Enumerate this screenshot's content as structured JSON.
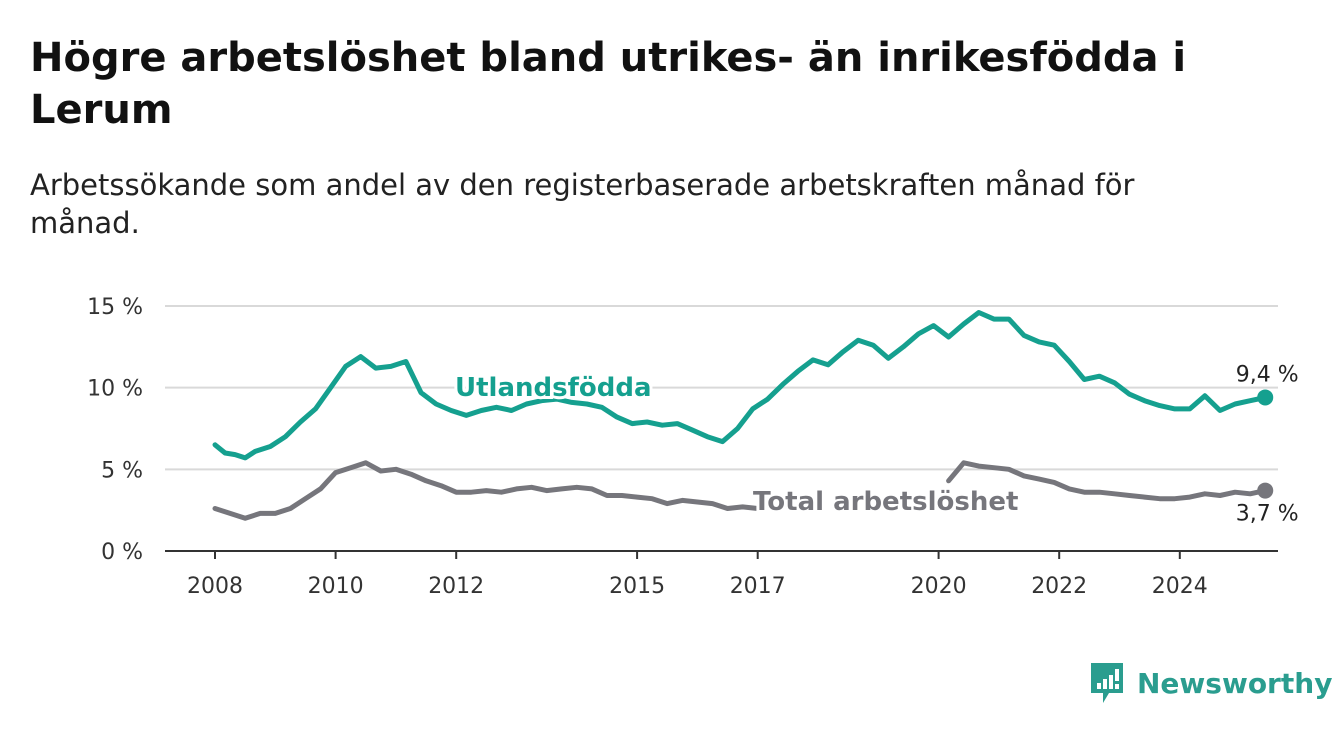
{
  "title": "Högre arbetslöshet bland utrikes- än inrikesfödda i Lerum",
  "subtitle": "Arbetssökande som andel av den registerbaserade arbetskraften månad för månad.",
  "brand": {
    "name": "Newsworthy",
    "icon": "newsworthy-logo-icon"
  },
  "colors": {
    "foreign": "#15a08f",
    "total": "#76767c",
    "grid": "#d9d9d9",
    "axis": "#333333",
    "brand": "#2a9d8f"
  },
  "chart_data": {
    "type": "line",
    "title": "Högre arbetslöshet bland utrikes- än inrikesfödda i Lerum",
    "subtitle": "Arbetssökande som andel av den registerbaserade arbetskraften månad för månad.",
    "xlabel": "",
    "ylabel": "",
    "x_ticks": [
      "2008",
      "2010",
      "2012",
      "2015",
      "2017",
      "2020",
      "2022",
      "2024"
    ],
    "y_ticks": [
      "0 %",
      "5 %",
      "10 %",
      "15 %"
    ],
    "y_tick_values": [
      0,
      5,
      10,
      15
    ],
    "ylim": [
      0,
      15
    ],
    "x_range": [
      "2008-01",
      "2025-06"
    ],
    "grid": true,
    "legend": "inline labels",
    "series": [
      {
        "name": "Utlandsfödda",
        "color": "#15a08f",
        "end_label": "9,4 %",
        "points": [
          [
            "2008-01",
            6.5
          ],
          [
            "2008-03",
            6.0
          ],
          [
            "2008-05",
            5.9
          ],
          [
            "2008-07",
            5.7
          ],
          [
            "2008-09",
            6.1
          ],
          [
            "2008-12",
            6.4
          ],
          [
            "2009-03",
            7.0
          ],
          [
            "2009-06",
            7.9
          ],
          [
            "2009-09",
            8.7
          ],
          [
            "2009-12",
            10.0
          ],
          [
            "2010-03",
            11.3
          ],
          [
            "2010-06",
            11.9
          ],
          [
            "2010-09",
            11.2
          ],
          [
            "2010-12",
            11.3
          ],
          [
            "2011-03",
            11.6
          ],
          [
            "2011-06",
            9.7
          ],
          [
            "2011-09",
            9.0
          ],
          [
            "2011-12",
            8.6
          ],
          [
            "2012-03",
            8.3
          ],
          [
            "2012-06",
            8.6
          ],
          [
            "2012-09",
            8.8
          ],
          [
            "2012-12",
            8.6
          ],
          [
            "2013-03",
            9.0
          ],
          [
            "2013-06",
            9.2
          ],
          [
            "2013-09",
            9.3
          ],
          [
            "2013-12",
            9.1
          ],
          [
            "2014-03",
            9.0
          ],
          [
            "2014-06",
            8.8
          ],
          [
            "2014-09",
            8.2
          ],
          [
            "2014-12",
            7.8
          ],
          [
            "2015-03",
            7.9
          ],
          [
            "2015-06",
            7.7
          ],
          [
            "2015-09",
            7.8
          ],
          [
            "2015-12",
            7.4
          ],
          [
            "2016-03",
            7.0
          ],
          [
            "2016-06",
            6.7
          ],
          [
            "2016-09",
            7.5
          ],
          [
            "2016-12",
            8.7
          ],
          [
            "2017-03",
            9.3
          ],
          [
            "2017-06",
            10.2
          ],
          [
            "2017-09",
            11.0
          ],
          [
            "2017-12",
            11.7
          ],
          [
            "2018-03",
            11.4
          ],
          [
            "2018-06",
            12.2
          ],
          [
            "2018-09",
            12.9
          ],
          [
            "2018-12",
            12.6
          ],
          [
            "2019-03",
            11.8
          ],
          [
            "2019-06",
            12.5
          ],
          [
            "2019-09",
            13.3
          ],
          [
            "2019-12",
            13.8
          ],
          [
            "2020-03",
            13.1
          ],
          [
            "2020-06",
            13.9
          ],
          [
            "2020-09",
            14.6
          ],
          [
            "2020-12",
            14.2
          ],
          [
            "2021-03",
            14.2
          ],
          [
            "2021-06",
            13.2
          ],
          [
            "2021-09",
            12.8
          ],
          [
            "2021-12",
            12.6
          ],
          [
            "2022-03",
            11.6
          ],
          [
            "2022-06",
            10.5
          ],
          [
            "2022-09",
            10.7
          ],
          [
            "2022-12",
            10.3
          ],
          [
            "2023-03",
            9.6
          ],
          [
            "2023-06",
            9.2
          ],
          [
            "2023-09",
            8.9
          ],
          [
            "2023-12",
            8.7
          ],
          [
            "2024-03",
            8.7
          ],
          [
            "2024-06",
            9.5
          ],
          [
            "2024-09",
            8.6
          ],
          [
            "2024-12",
            9.0
          ],
          [
            "2025-03",
            9.2
          ],
          [
            "2025-06",
            9.4
          ]
        ]
      },
      {
        "name": "Total arbetslöshet",
        "color": "#76767c",
        "end_label": "3,7 %",
        "segments": [
          [
            [
              "2008-01",
              2.6
            ],
            [
              "2008-04",
              2.3
            ],
            [
              "2008-07",
              2.0
            ],
            [
              "2008-10",
              2.3
            ],
            [
              "2009-01",
              2.3
            ],
            [
              "2009-04",
              2.6
            ],
            [
              "2009-07",
              3.2
            ],
            [
              "2009-10",
              3.8
            ],
            [
              "2010-01",
              4.8
            ],
            [
              "2010-04",
              5.1
            ],
            [
              "2010-07",
              5.4
            ],
            [
              "2010-10",
              4.9
            ],
            [
              "2011-01",
              5.0
            ],
            [
              "2011-04",
              4.7
            ],
            [
              "2011-07",
              4.3
            ],
            [
              "2011-10",
              4.0
            ],
            [
              "2012-01",
              3.6
            ],
            [
              "2012-04",
              3.6
            ],
            [
              "2012-07",
              3.7
            ],
            [
              "2012-10",
              3.6
            ],
            [
              "2013-01",
              3.8
            ],
            [
              "2013-04",
              3.9
            ],
            [
              "2013-07",
              3.7
            ],
            [
              "2013-10",
              3.8
            ],
            [
              "2014-01",
              3.9
            ],
            [
              "2014-04",
              3.8
            ],
            [
              "2014-07",
              3.4
            ],
            [
              "2014-10",
              3.4
            ],
            [
              "2015-01",
              3.3
            ],
            [
              "2015-04",
              3.2
            ],
            [
              "2015-07",
              2.9
            ],
            [
              "2015-10",
              3.1
            ],
            [
              "2016-01",
              3.0
            ],
            [
              "2016-04",
              2.9
            ],
            [
              "2016-07",
              2.6
            ],
            [
              "2016-10",
              2.7
            ],
            [
              "2017-01",
              2.6
            ]
          ],
          [
            [
              "2020-03",
              4.3
            ],
            [
              "2020-06",
              5.4
            ],
            [
              "2020-09",
              5.2
            ],
            [
              "2020-12",
              5.1
            ],
            [
              "2021-03",
              5.0
            ],
            [
              "2021-06",
              4.6
            ],
            [
              "2021-09",
              4.4
            ],
            [
              "2021-12",
              4.2
            ],
            [
              "2022-03",
              3.8
            ],
            [
              "2022-06",
              3.6
            ],
            [
              "2022-09",
              3.6
            ],
            [
              "2022-12",
              3.5
            ],
            [
              "2023-03",
              3.4
            ],
            [
              "2023-06",
              3.3
            ],
            [
              "2023-09",
              3.2
            ],
            [
              "2023-12",
              3.2
            ],
            [
              "2024-03",
              3.3
            ],
            [
              "2024-06",
              3.5
            ],
            [
              "2024-09",
              3.4
            ],
            [
              "2024-12",
              3.6
            ],
            [
              "2025-03",
              3.5
            ],
            [
              "2025-06",
              3.7
            ]
          ]
        ]
      }
    ]
  }
}
